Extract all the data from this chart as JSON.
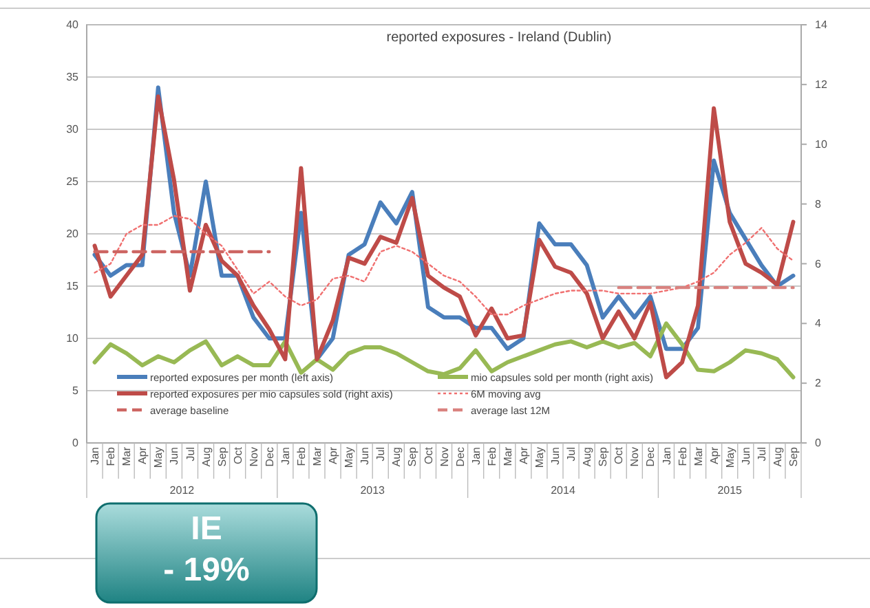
{
  "chart_data": {
    "type": "line",
    "title": "reported exposures - Ireland (Dublin)",
    "categories": [
      "Jan",
      "Feb",
      "Mar",
      "Apr",
      "May",
      "Jun",
      "Jul",
      "Aug",
      "Sep",
      "Oct",
      "Nov",
      "Dec",
      "Jan",
      "Feb",
      "Mar",
      "Apr",
      "May",
      "Jun",
      "Jul",
      "Aug",
      "Sep",
      "Oct",
      "Nov",
      "Dec",
      "Jan",
      "Feb",
      "Mar",
      "Apr",
      "May",
      "Jun",
      "Jul",
      "Aug",
      "Sep",
      "Oct",
      "Nov",
      "Dec",
      "Jan",
      "Feb",
      "Mar",
      "Apr",
      "May",
      "Jun",
      "Jul",
      "Aug",
      "Sep"
    ],
    "ylim": [
      0,
      40
    ],
    "yticks": [
      0,
      5,
      10,
      15,
      20,
      25,
      30,
      35,
      40
    ],
    "y2lim": [
      0,
      14
    ],
    "y2ticks": [
      0,
      2,
      4,
      6,
      8,
      10,
      12,
      14
    ],
    "grid": "y",
    "legend": "bottom",
    "marker": "none",
    "series": [
      {
        "name": "reported exposures per month (left axis)",
        "color": "#4a7ebb",
        "line_style": "solid",
        "values": [
          18,
          16,
          17,
          17,
          34,
          22,
          16,
          25,
          16,
          16,
          12,
          10,
          10,
          22,
          8,
          10,
          18,
          19,
          23,
          21,
          24,
          13,
          12,
          12,
          11,
          11,
          9,
          10,
          21,
          19,
          19,
          17,
          12,
          14,
          12,
          14,
          9,
          9,
          11,
          27,
          22,
          19.5,
          17,
          15,
          16
        ]
      },
      {
        "name": "mio capsules sold per month (right axis)",
        "color": "#98b954",
        "axis": "y2",
        "line_style": "solid",
        "values": [
          2.7,
          3.3,
          3.0,
          2.6,
          2.9,
          2.7,
          3.1,
          3.4,
          2.6,
          2.9,
          2.6,
          2.6,
          3.4,
          2.35,
          2.8,
          2.45,
          3.0,
          3.2,
          3.2,
          3.0,
          2.7,
          2.4,
          2.3,
          2.5,
          3.1,
          2.4,
          2.7,
          2.9,
          3.1,
          3.3,
          3.4,
          3.2,
          3.4,
          3.2,
          3.35,
          2.9,
          4.0,
          3.3,
          2.45,
          2.4,
          2.7,
          3.1,
          3.0,
          2.8,
          2.2
        ]
      },
      {
        "name": "reported exposures per mio capsules sold (right axis)",
        "color": "#be4b48",
        "axis": "y2",
        "line_style": "solid",
        "values": [
          6.6,
          4.9,
          5.6,
          6.3,
          11.6,
          8.8,
          5.1,
          7.3,
          6.1,
          5.6,
          4.6,
          3.8,
          2.8,
          9.2,
          2.8,
          4.1,
          6.2,
          6.0,
          6.9,
          6.7,
          8.2,
          5.6,
          5.2,
          4.9,
          3.6,
          4.5,
          3.5,
          3.6,
          6.8,
          5.9,
          5.7,
          5.0,
          3.5,
          4.4,
          3.5,
          4.7,
          2.2,
          2.7,
          4.6,
          11.2,
          7.4,
          6.0,
          5.7,
          5.3,
          7.4
        ]
      },
      {
        "name": "6M moving avg",
        "color": "#f07070",
        "axis": "y2",
        "line_style": "dotted",
        "values": [
          5.7,
          6.0,
          7.0,
          7.3,
          7.3,
          7.6,
          7.5,
          7.0,
          6.6,
          5.8,
          5.0,
          5.4,
          4.9,
          4.6,
          4.8,
          5.5,
          5.6,
          5.4,
          6.4,
          6.6,
          6.4,
          6.0,
          5.6,
          5.4,
          4.9,
          4.3,
          4.3,
          4.6,
          4.8,
          5.0,
          5.1,
          5.1,
          5.1,
          5.0,
          5.0,
          5.0,
          5.1,
          5.2,
          5.4,
          5.7,
          6.3,
          6.7,
          7.2,
          6.5,
          6.1
        ]
      },
      {
        "name": "average baseline",
        "color": "#cd6562",
        "axis": "y2",
        "line_style": "dashed",
        "values": [
          6.4,
          6.4,
          6.4,
          6.4,
          6.4,
          6.4,
          6.4,
          6.4,
          6.4,
          6.4,
          6.4,
          6.4,
          null,
          null,
          null,
          null,
          null,
          null,
          null,
          null,
          null,
          null,
          null,
          null,
          null,
          null,
          null,
          null,
          null,
          null,
          null,
          null,
          null,
          null,
          null,
          null,
          null,
          null,
          null,
          null,
          null,
          null,
          null,
          null,
          null
        ]
      },
      {
        "name": "average last 12M",
        "color": "#d9827f",
        "axis": "y2",
        "line_style": "dashed",
        "values": [
          null,
          null,
          null,
          null,
          null,
          null,
          null,
          null,
          null,
          null,
          null,
          null,
          null,
          null,
          null,
          null,
          null,
          null,
          null,
          null,
          null,
          null,
          null,
          null,
          null,
          null,
          null,
          null,
          null,
          null,
          null,
          null,
          null,
          5.2,
          5.2,
          5.2,
          5.2,
          5.2,
          5.2,
          5.2,
          5.2,
          5.2,
          5.2,
          5.2,
          5.2
        ]
      }
    ],
    "annotations": [
      "IE\n- 19%",
      "2012",
      "2013",
      "2014",
      "2015"
    ]
  }
}
